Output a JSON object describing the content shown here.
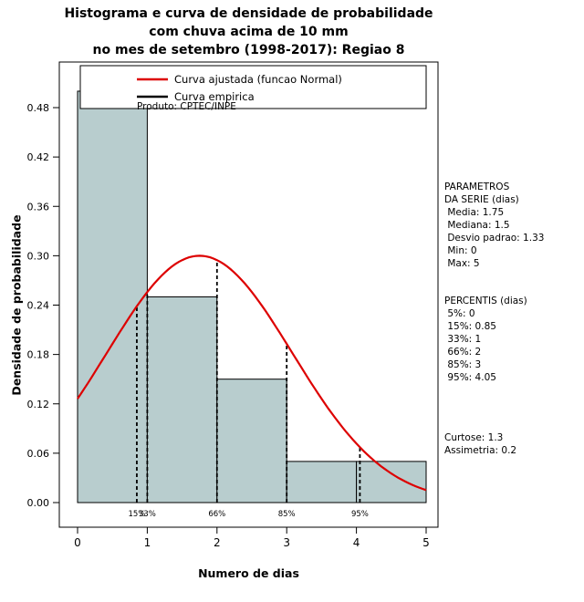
{
  "title": {
    "line1": "Histograma e curva de densidade de probabilidade",
    "line2": "com chuva acima de 10 mm",
    "line3": "no mes de setembro (1998-2017): Regiao 8"
  },
  "colors": {
    "background": "#ffffff",
    "bar_fill": "#b8cdce",
    "bar_border": "#000000",
    "fitted_curve": "#dd0000",
    "empirical_curve": "#000000"
  },
  "chart_data": {
    "type": "bar",
    "subtype": "histogram-with-fitted-normal-density",
    "title": "Histograma e curva de densidade de probabilidade com chuva acima de 10 mm no mes de setembro (1998-2017): Regiao 8",
    "xlabel": "Numero de dias",
    "ylabel": "Densidade de probabilidade",
    "xlim": [
      0,
      5
    ],
    "ylim": [
      0,
      0.48
    ],
    "grid": false,
    "x_tick_labels": [
      "0",
      "1",
      "2",
      "3",
      "4",
      "5"
    ],
    "y_tick_labels": [
      "0.00",
      "0.06",
      "0.12",
      "0.18",
      "0.24",
      "0.30",
      "0.36",
      "0.42",
      "0.48"
    ],
    "legend_position": "top",
    "legend": [
      {
        "label": "Curva ajustada (funcao Normal)",
        "color": "#dd0000"
      },
      {
        "label": "Curva empirica",
        "color": "#000000"
      }
    ],
    "annotation": "Produto: CPTEC/INPE",
    "bars": {
      "bin_edges": [
        0,
        1,
        2,
        3,
        4,
        5
      ],
      "densities": [
        0.5,
        0.25,
        0.15,
        0.05,
        0.05
      ]
    },
    "fitted_normal": {
      "mean": 1.75,
      "sd": 1.33
    },
    "percentile_lines": [
      {
        "label": "15%",
        "x": 0.85
      },
      {
        "label": "33%",
        "x": 1
      },
      {
        "label": "66%",
        "x": 2
      },
      {
        "label": "85%",
        "x": 3
      },
      {
        "label": "95%",
        "x": 4.05
      }
    ]
  },
  "side_panel": {
    "sections": [
      {
        "name": "parametros",
        "lines": [
          "PARAMETROS",
          "DA SERIE (dias)",
          " Media: 1.75",
          " Mediana: 1.5",
          " Desvio padrao: 1.33",
          " Min: 0",
          " Max: 5"
        ]
      },
      {
        "name": "percentis",
        "lines": [
          "PERCENTIS (dias)",
          " 5%: 0",
          " 15%: 0.85",
          " 33%: 1",
          " 66%: 2",
          " 85%: 3",
          " 95%: 4.05"
        ]
      },
      {
        "name": "momentos",
        "lines": [
          "Curtose: 1.3",
          "Assimetria: 0.2"
        ]
      }
    ]
  }
}
